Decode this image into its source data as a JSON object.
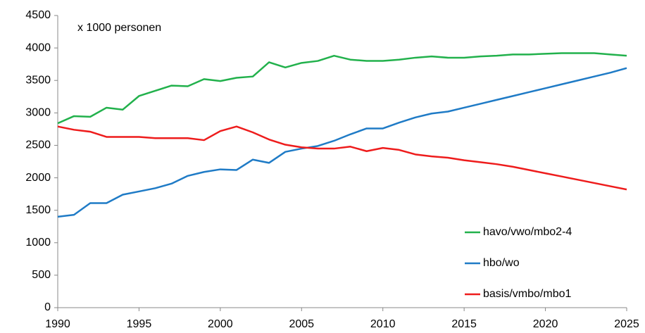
{
  "chart_data": {
    "type": "line",
    "annotation": "x 1000 personen",
    "x": [
      1990,
      1991,
      1992,
      1993,
      1994,
      1995,
      1996,
      1997,
      1998,
      1999,
      2000,
      2001,
      2002,
      2003,
      2004,
      2005,
      2006,
      2007,
      2008,
      2009,
      2010,
      2011,
      2012,
      2013,
      2014,
      2015,
      2016,
      2017,
      2018,
      2019,
      2020,
      2021,
      2022,
      2023,
      2024,
      2025
    ],
    "series": [
      {
        "name": "havo/vwo/mbo2-4",
        "color": "#22b14c",
        "values": [
          2840,
          2950,
          2940,
          3080,
          3050,
          3260,
          3340,
          3420,
          3410,
          3520,
          3490,
          3540,
          3560,
          3780,
          3700,
          3770,
          3800,
          3880,
          3820,
          3800,
          3800,
          3820,
          3850,
          3870,
          3850,
          3850,
          3870,
          3880,
          3900,
          3900,
          3910,
          3920,
          3920,
          3920,
          3900,
          3880
        ]
      },
      {
        "name": "hbo/wo",
        "color": "#1f7bc6",
        "values": [
          1400,
          1430,
          1610,
          1610,
          1740,
          1790,
          1840,
          1910,
          2030,
          2090,
          2130,
          2120,
          2280,
          2230,
          2400,
          2450,
          2490,
          2570,
          2670,
          2760,
          2760,
          2850,
          2930,
          2990,
          3020,
          3080,
          3140,
          3200,
          3260,
          3320,
          3380,
          3440,
          3500,
          3560,
          3620,
          3690
        ]
      },
      {
        "name": "basis/vmbo/mbo1",
        "color": "#ee1c1c",
        "values": [
          2790,
          2740,
          2710,
          2630,
          2630,
          2630,
          2610,
          2610,
          2610,
          2580,
          2720,
          2790,
          2700,
          2590,
          2510,
          2470,
          2450,
          2450,
          2480,
          2410,
          2460,
          2430,
          2360,
          2330,
          2310,
          2270,
          2240,
          2210,
          2170,
          2120,
          2070,
          2020,
          1970,
          1920,
          1870,
          1820
        ]
      }
    ],
    "xlim": [
      1990,
      2025
    ],
    "xticks": [
      1990,
      1995,
      2000,
      2005,
      2010,
      2015,
      2020,
      2025
    ],
    "ylim": [
      0,
      4500
    ],
    "yticks": [
      0,
      500,
      1000,
      1500,
      2000,
      2500,
      3000,
      3500,
      4000,
      4500
    ],
    "grid": false,
    "legend": "lower right"
  }
}
